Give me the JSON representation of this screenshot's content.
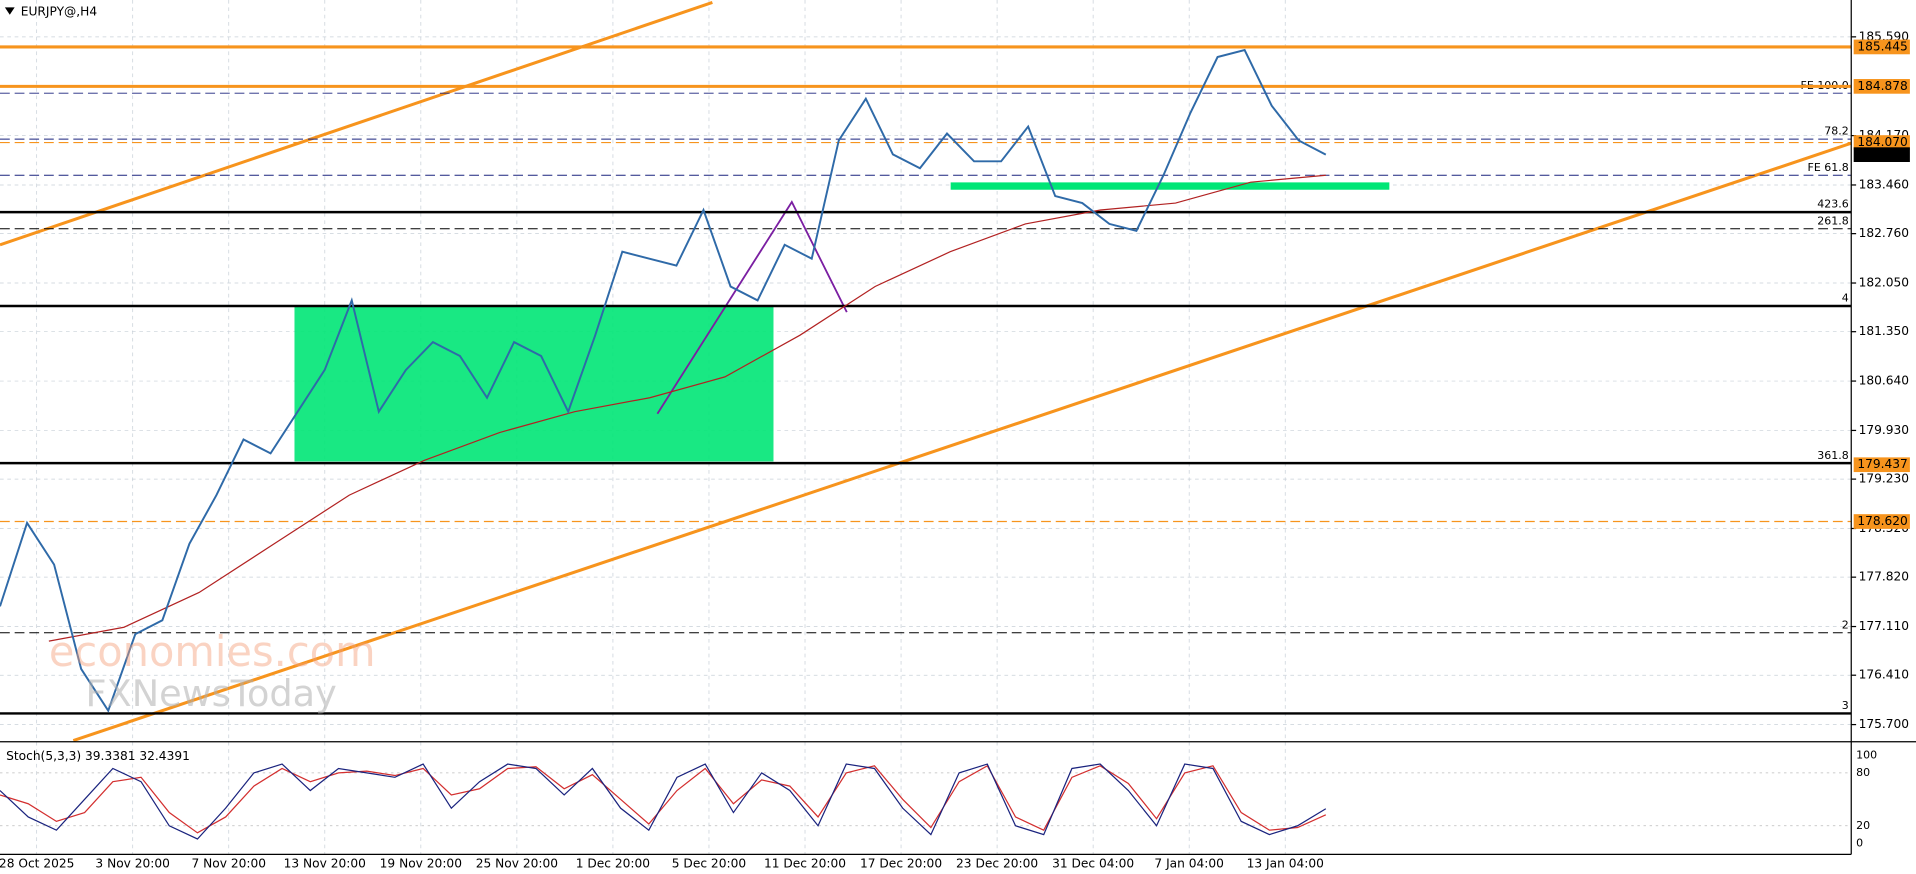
{
  "chart_data": {
    "type": "line",
    "title": "EURJPY@,H4",
    "ylim": [
      175.47,
      186.12
    ],
    "yticks": [
      {
        "value": 185.59,
        "label": "185.590"
      },
      {
        "value": 184.17,
        "label": "184.170"
      },
      {
        "value": 183.46,
        "label": "183.460"
      },
      {
        "value": 182.76,
        "label": "182.760"
      },
      {
        "value": 182.05,
        "label": "182.050"
      },
      {
        "value": 181.35,
        "label": "181.350"
      },
      {
        "value": 180.64,
        "label": "180.640"
      },
      {
        "value": 179.93,
        "label": "179.930"
      },
      {
        "value": 179.23,
        "label": "179.230"
      },
      {
        "value": 178.52,
        "label": "178.520"
      },
      {
        "value": 177.82,
        "label": "177.820"
      },
      {
        "value": 177.11,
        "label": "177.110"
      },
      {
        "value": 176.41,
        "label": "176.410"
      },
      {
        "value": 175.7,
        "label": "175.700"
      }
    ],
    "xticks": [
      "28 Oct 2025",
      "3 Nov 20:00",
      "7 Nov 20:00",
      "13 Nov 20:00",
      "19 Nov 20:00",
      "25 Nov 20:00",
      "1 Dec 20:00",
      "5 Dec 20:00",
      "11 Dec 20:00",
      "17 Dec 20:00",
      "23 Dec 20:00",
      "31 Dec 04:00",
      "7 Jan 04:00",
      "13 Jan 04:00"
    ],
    "grid": true,
    "series": [
      {
        "color": "#2f6aa8",
        "values": [
          177.4,
          178.6,
          178.0,
          176.5,
          175.9,
          177.0,
          177.2,
          178.3,
          179.0,
          179.8,
          179.6,
          180.2,
          180.8,
          181.8,
          180.2,
          180.8,
          181.2,
          181.0,
          180.4,
          181.2,
          181.0,
          180.2,
          181.3,
          182.5,
          182.4,
          182.3,
          183.1,
          182.0,
          181.8,
          182.6,
          182.4,
          184.1,
          184.7,
          183.9,
          183.7,
          184.2,
          183.8,
          183.8,
          184.3,
          183.3,
          183.2,
          182.9,
          182.8,
          183.6,
          184.5,
          185.3,
          185.4,
          184.6,
          184.1,
          183.896
        ]
      },
      {
        "color": "#b22222",
        "values": [
          176.9,
          177.1,
          177.6,
          178.3,
          179.0,
          179.5,
          179.9,
          180.2,
          180.4,
          180.7,
          181.3,
          182.0,
          182.5,
          182.9,
          183.1,
          183.2,
          183.5,
          183.6
        ]
      }
    ],
    "levels": [
      {
        "label": "FE 100.0",
        "value": 184.78,
        "color": "#1a237e",
        "style": "dashed"
      },
      {
        "label": "78.2",
        "value": 184.12,
        "color": "#1a237e",
        "style": "dashed"
      },
      {
        "label": "FE 61.8",
        "value": 183.6,
        "color": "#1a237e",
        "style": "dashed"
      },
      {
        "label": "423.6",
        "value": 183.07,
        "color": "#000000",
        "style": "solid"
      },
      {
        "label": "261.8",
        "value": 182.83,
        "color": "#000000",
        "style": "dashed"
      },
      {
        "label": "4",
        "value": 181.72,
        "color": "#000000",
        "style": "solid"
      },
      {
        "label": "361.8",
        "value": 179.46,
        "color": "#000000",
        "style": "solid"
      },
      {
        "label": "2",
        "value": 177.02,
        "color": "#000000",
        "style": "dashed"
      },
      {
        "label": "3",
        "value": 175.86,
        "color": "#000000",
        "style": "solid"
      }
    ],
    "price_labels": [
      {
        "label": "185.445",
        "value": 185.445,
        "color": "#f7941d",
        "style": "solid"
      },
      {
        "label": "184.878",
        "value": 184.878,
        "color": "#f7941d",
        "style": "solid"
      },
      {
        "label": "184.070",
        "value": 184.07,
        "color": "#f7941d",
        "style": "dashed"
      },
      {
        "label": "183.896",
        "value": 183.896,
        "color": "#000000",
        "style": "none"
      },
      {
        "label": "179.437",
        "value": 179.437,
        "color": "#f7941d",
        "style": "none"
      },
      {
        "label": "178.620",
        "value": 178.62,
        "color": "#f7941d",
        "style": "dashed"
      }
    ],
    "watermark": [
      "economies.com",
      "FXNewsToday"
    ],
    "stochastic": {
      "title": "Stoch(5,3,3) 39.3381 32.4391",
      "ylim": [
        0,
        100
      ],
      "yticks": [
        100,
        80,
        20,
        0
      ],
      "main": {
        "color": "#1a237e",
        "values": [
          60,
          30,
          15,
          50,
          85,
          70,
          20,
          5,
          40,
          80,
          90,
          60,
          85,
          80,
          75,
          90,
          40,
          70,
          90,
          85,
          55,
          85,
          40,
          15,
          75,
          90,
          35,
          80,
          60,
          20,
          90,
          85,
          40,
          10,
          80,
          90,
          20,
          10,
          85,
          90,
          60,
          20,
          90,
          85,
          25,
          10,
          20,
          39.3381
        ]
      },
      "signal": {
        "color": "#d32f2f",
        "values": [
          55,
          45,
          25,
          35,
          70,
          75,
          35,
          12,
          30,
          65,
          85,
          70,
          80,
          82,
          77,
          85,
          55,
          62,
          85,
          87,
          62,
          78,
          50,
          22,
          60,
          85,
          45,
          72,
          65,
          30,
          80,
          88,
          50,
          18,
          70,
          88,
          30,
          15,
          75,
          88,
          68,
          28,
          80,
          88,
          35,
          15,
          18,
          32.4391
        ]
      }
    }
  }
}
